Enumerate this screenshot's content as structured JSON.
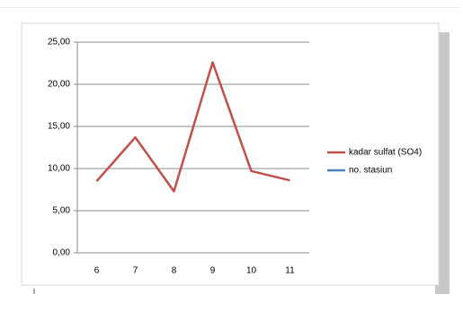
{
  "chart_data": {
    "type": "line",
    "categories": [
      "6",
      "7",
      "8",
      "9",
      "10",
      "11"
    ],
    "series": [
      {
        "name": "kadar sulfat (SO4)",
        "color": "#c0504d",
        "values": [
          8.5,
          13.7,
          7.3,
          22.6,
          9.7,
          8.6
        ]
      },
      {
        "name": "no. stasiun",
        "color": "#4f81bd",
        "values": [
          null,
          null,
          null,
          null,
          null,
          null
        ]
      }
    ],
    "ylim": [
      0,
      25
    ],
    "yticks": [
      {
        "value": 0,
        "label": "0,00"
      },
      {
        "value": 5,
        "label": "5,00"
      },
      {
        "value": 10,
        "label": "10,00"
      },
      {
        "value": 15,
        "label": "15,00"
      },
      {
        "value": 20,
        "label": "20,00"
      },
      {
        "value": 25,
        "label": "25,00"
      }
    ],
    "grid": true,
    "legend": "right"
  }
}
